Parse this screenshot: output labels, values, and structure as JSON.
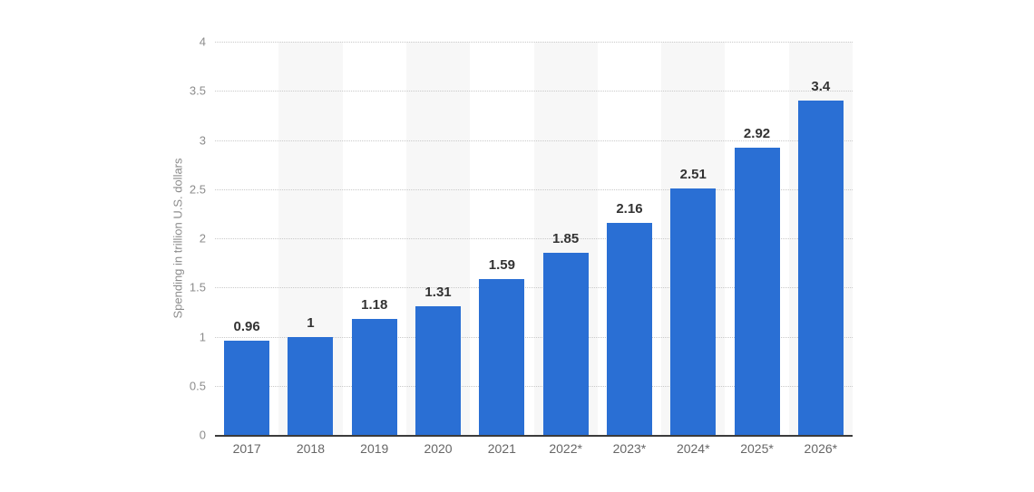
{
  "chart_data": {
    "type": "bar",
    "title": "",
    "categories": [
      "2017",
      "2018",
      "2019",
      "2020",
      "2021",
      "2022*",
      "2023*",
      "2024*",
      "2025*",
      "2026*"
    ],
    "values": [
      0.96,
      1,
      1.18,
      1.31,
      1.59,
      1.85,
      2.16,
      2.51,
      2.92,
      3.4
    ],
    "value_labels": [
      "0.96",
      "1",
      "1.18",
      "1.31",
      "1.59",
      "1.85",
      "2.16",
      "2.51",
      "2.92",
      "3.4"
    ],
    "xlabel": "",
    "ylabel": "Spending in trillion U.S. dollars",
    "ylim": [
      0,
      4
    ],
    "ytick_values": [
      0,
      0.5,
      1,
      1.5,
      2,
      2.5,
      3,
      3.5,
      4
    ],
    "ytick_labels": [
      "0",
      "0.5",
      "1",
      "1.5",
      "2",
      "2.5",
      "3",
      "3.5",
      "4"
    ],
    "grid": "horizontal-dotted",
    "legend": "none",
    "stripe_pattern": "alternating columns starting at second category",
    "colors": {
      "bar": "#2a6fd4",
      "value_label": "#333333",
      "y_tick_label": "#8c8c8c",
      "x_tick_label": "#666666",
      "gridline": "#c9c9c9",
      "column_stripe": "#f7f7f7",
      "axis_line": "#3b3b3b",
      "background": "#ffffff"
    }
  }
}
